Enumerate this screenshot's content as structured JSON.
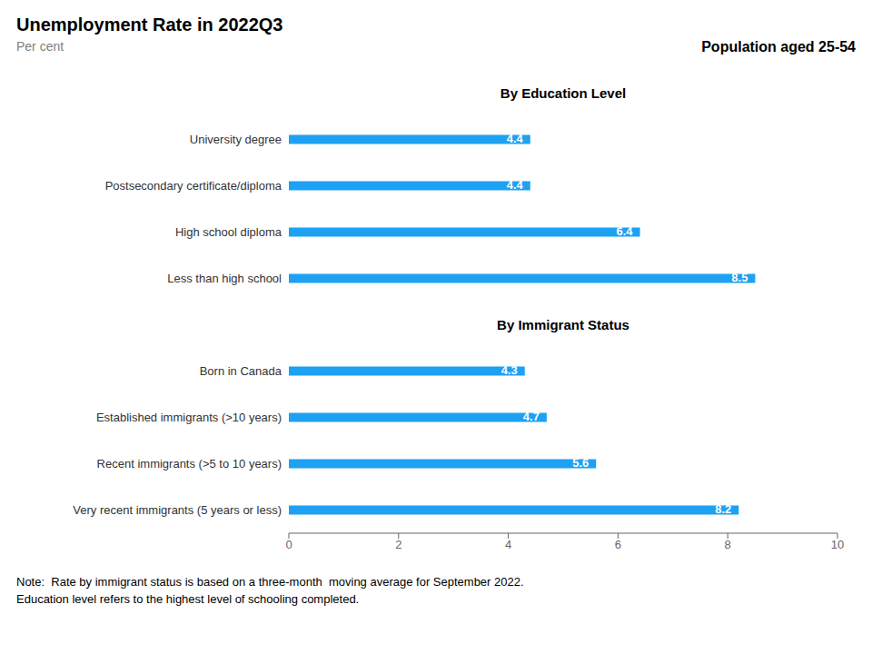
{
  "chart_data": {
    "type": "bar",
    "orientation": "horizontal",
    "title": "Unemployment Rate in 2022Q3",
    "subtitle": "Per cent",
    "annotations": [
      "Population aged 25-54",
      "Note:  Rate by immigrant status is based on a three-month  moving average for September 2022.",
      "Education level refers to the highest level of schooling completed."
    ],
    "groups": [
      {
        "name": "By Education Level",
        "categories": [
          "University degree",
          "Postsecondary certificate/diploma",
          "High school diploma",
          "Less than high school"
        ],
        "values": [
          4.4,
          4.4,
          6.4,
          8.5
        ]
      },
      {
        "name": "By Immigrant Status",
        "categories": [
          "Born in Canada",
          "Established immigrants (>10 years)",
          "Recent immigrants (>5 to 10 years)",
          "Very recent immigrants (5 years or less)"
        ],
        "values": [
          4.3,
          4.7,
          5.6,
          8.2
        ]
      }
    ],
    "color": "#1DA1F2",
    "xlim": [
      0,
      10
    ],
    "xticks": [
      0,
      2,
      4,
      6,
      8,
      10
    ],
    "data_labels": true,
    "grid": false
  }
}
